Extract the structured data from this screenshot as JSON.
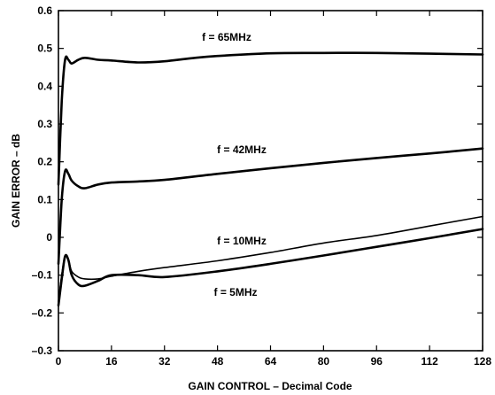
{
  "chart_data": {
    "type": "line",
    "title": "",
    "xlabel": "GAIN CONTROL – Decimal Code",
    "ylabel": "GAIN ERROR – dB",
    "xlim": [
      0,
      128
    ],
    "ylim": [
      -0.3,
      0.6
    ],
    "xticks": [
      "0",
      "16",
      "32",
      "48",
      "64",
      "80",
      "96",
      "112",
      "128"
    ],
    "yticks": [
      "–0.3",
      "–0.2",
      "–0.1",
      "0",
      "0.1",
      "0.2",
      "0.3",
      "0.4",
      "0.5",
      "0.6"
    ],
    "grid": false,
    "series": [
      {
        "name": "f = 65MHz",
        "x": [
          0,
          1,
          2,
          3,
          4,
          6,
          8,
          12,
          16,
          24,
          32,
          40,
          48,
          64,
          80,
          96,
          112,
          128
        ],
        "y": [
          0.14,
          0.36,
          0.47,
          0.47,
          0.46,
          0.47,
          0.475,
          0.47,
          0.468,
          0.463,
          0.466,
          0.474,
          0.48,
          0.487,
          0.488,
          0.488,
          0.486,
          0.484
        ]
      },
      {
        "name": "f = 42MHz",
        "x": [
          0,
          1,
          2,
          3,
          4,
          6,
          8,
          12,
          16,
          24,
          32,
          48,
          64,
          80,
          96,
          112,
          128
        ],
        "y": [
          -0.07,
          0.1,
          0.175,
          0.168,
          0.15,
          0.135,
          0.13,
          0.14,
          0.145,
          0.148,
          0.152,
          0.168,
          0.183,
          0.197,
          0.21,
          0.222,
          0.235
        ]
      },
      {
        "name": "f = 10MHz",
        "x": [
          0,
          1,
          2,
          3,
          4,
          6,
          8,
          12,
          16,
          24,
          32,
          48,
          64,
          80,
          96,
          112,
          128
        ],
        "y": [
          -0.17,
          -0.1,
          -0.05,
          -0.06,
          -0.09,
          -0.105,
          -0.11,
          -0.11,
          -0.103,
          -0.09,
          -0.08,
          -0.062,
          -0.04,
          -0.015,
          0.005,
          0.03,
          0.055
        ]
      },
      {
        "name": "f = 5MHz",
        "x": [
          0,
          1,
          2,
          3,
          4,
          6,
          8,
          12,
          16,
          24,
          32,
          48,
          64,
          80,
          96,
          112,
          128
        ],
        "y": [
          -0.18,
          -0.11,
          -0.05,
          -0.06,
          -0.1,
          -0.125,
          -0.128,
          -0.115,
          -0.1,
          -0.1,
          -0.105,
          -0.09,
          -0.07,
          -0.048,
          -0.025,
          -0.002,
          0.022
        ]
      }
    ]
  }
}
